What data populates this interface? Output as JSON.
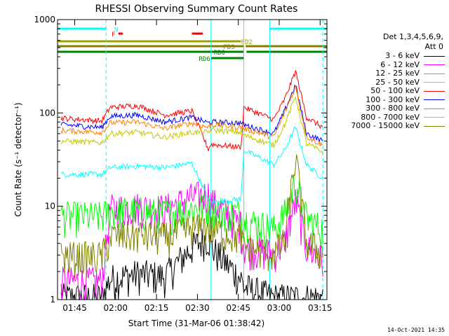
{
  "chart_data": {
    "type": "line",
    "title": "RHESSI Observing Summary Count Rates",
    "xlabel": "Start Time (31-Mar-06 01:38:42)",
    "ylabel": "Count Rate (s⁻¹ detector⁻¹)",
    "yscale": "log",
    "ylim": [
      1,
      1000
    ],
    "xlim": [
      "01:38:42",
      "03:17:30"
    ],
    "x_ticks": [
      "01:45",
      "02:00",
      "02:15",
      "02:30",
      "02:45",
      "03:00",
      "03:15"
    ],
    "y_ticks": [
      1,
      10,
      100,
      1000
    ],
    "y_tick_labels": [
      "1",
      "10",
      "100",
      "1000"
    ],
    "legend_header": [
      "Det 1,3,4,5,6,9,",
      "Att 0"
    ],
    "legend_position": "right",
    "grid": false,
    "x": [
      "01:40",
      "01:55",
      "01:58",
      "02:08",
      "02:18",
      "02:28",
      "02:34",
      "02:35",
      "02:46",
      "02:47",
      "02:58",
      "03:02",
      "03:06",
      "03:10",
      "03:16"
    ],
    "series": [
      {
        "name": "3 - 6 keV",
        "color": "#000000",
        "values": [
          1,
          1,
          1.6,
          1.8,
          1.7,
          3.5,
          4.5,
          3.5,
          1.6,
          1.3,
          1,
          1,
          1,
          1,
          1
        ]
      },
      {
        "name": "6 - 12 keV",
        "color": "#ff00ff",
        "values": [
          1.5,
          1.5,
          9,
          9.5,
          9,
          12,
          13,
          11,
          6,
          3.5,
          3,
          4,
          11,
          3.5,
          2.5
        ]
      },
      {
        "name": "12 - 25 keV",
        "color": "#00ff00",
        "values": [
          7.5,
          7.5,
          8.5,
          8.5,
          8,
          9,
          9.5,
          9,
          8,
          7,
          5.5,
          8,
          18,
          7,
          5.5
        ]
      },
      {
        "name": "25 - 50 keV",
        "color": "#00ffff",
        "values": [
          22,
          22,
          26,
          27,
          26,
          29,
          12,
          11,
          12,
          40,
          28,
          40,
          70,
          28,
          20
        ]
      },
      {
        "name": "50 - 100 keV",
        "color": "#ff0000",
        "values": [
          88,
          82,
          115,
          120,
          95,
          105,
          41,
          46,
          43,
          115,
          85,
          140,
          280,
          90,
          70
        ]
      },
      {
        "name": "100 - 300 keV",
        "color": "#0000ff",
        "values": [
          75,
          70,
          92,
          95,
          80,
          90,
          78,
          80,
          78,
          75,
          60,
          105,
          200,
          60,
          50
        ]
      },
      {
        "name": "300 - 800 keV",
        "color": "#ff8000",
        "values": [
          65,
          62,
          78,
          80,
          68,
          78,
          70,
          75,
          70,
          68,
          55,
          100,
          190,
          56,
          45
        ]
      },
      {
        "name": "800 - 7000 keV",
        "color": "#c8c800",
        "values": [
          50,
          48,
          60,
          62,
          55,
          62,
          62,
          66,
          62,
          58,
          45,
          75,
          150,
          47,
          38
        ]
      },
      {
        "name": "7000 - 15000 keV",
        "color": "#808000",
        "values": [
          2.8,
          2.8,
          4.5,
          4.8,
          4.5,
          5.5,
          5.8,
          5.5,
          4.5,
          3.5,
          3,
          4,
          33,
          4,
          3
        ]
      }
    ],
    "flags": [
      {
        "label": "N",
        "color": "#00ffff",
        "spans": [
          [
            "01:38:42",
            "01:56:30"
          ],
          [
            "02:56:30",
            "03:17:30"
          ]
        ]
      },
      {
        "label": "F",
        "color": "#ff0000",
        "spans": [
          [
            "02:01:00",
            "02:02:40"
          ],
          [
            "02:28:00",
            "02:32:00"
          ]
        ]
      },
      {
        "label": "FD2",
        "color": "#a0a000",
        "spans": [
          [
            "01:38:42",
            "02:46:00"
          ]
        ]
      },
      {
        "label": "FD3",
        "color": "#808000",
        "spans": [
          [
            "01:38:42",
            "02:47:00"
          ],
          [
            "02:47:40",
            "03:17:30"
          ]
        ]
      },
      {
        "label": "RD0",
        "color": "#008000",
        "spans": [
          [
            "01:38:42",
            "02:47:00"
          ],
          [
            "02:48:00",
            "03:17:30"
          ]
        ]
      },
      {
        "label": "RD6",
        "color": "#008000",
        "spans": [
          [
            "02:35:00",
            "02:47:00"
          ]
        ]
      }
    ],
    "vlines_solid": [
      "02:35:00",
      "02:47:00",
      "02:56:30"
    ],
    "vlines_dashed": [
      "01:56:30",
      "03:16:00"
    ]
  },
  "timestamp": "14-Oct-2021 14:35"
}
